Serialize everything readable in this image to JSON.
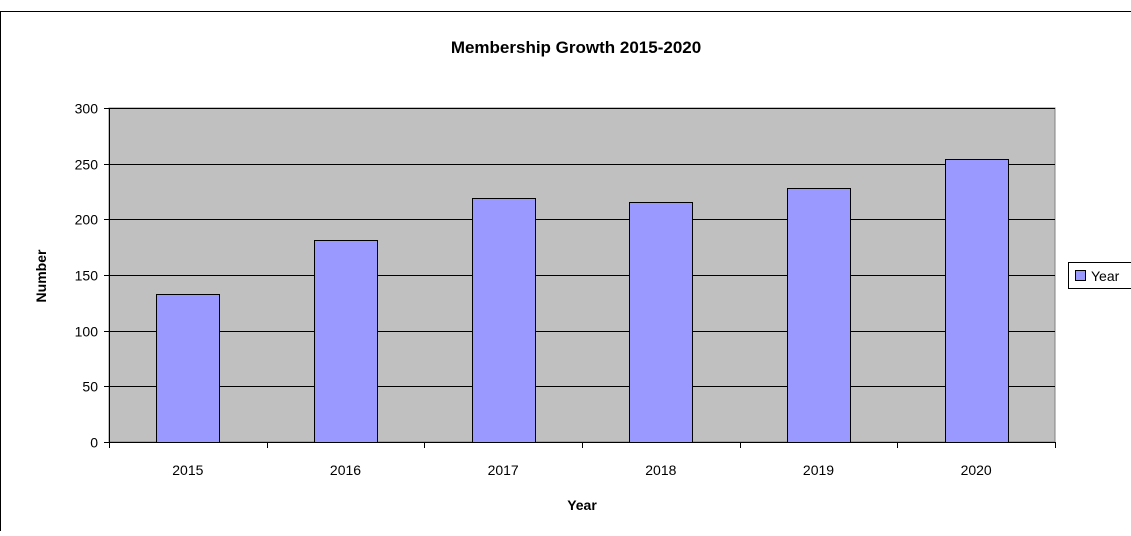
{
  "chart_data": {
    "type": "bar",
    "title": "Membership Growth 2015-2020",
    "xlabel": "Year",
    "ylabel": "Number",
    "categories": [
      "2015",
      "2016",
      "2017",
      "2018",
      "2019",
      "2020"
    ],
    "series": [
      {
        "name": "Year",
        "values": [
          133,
          181,
          219,
          216,
          228,
          254
        ]
      }
    ],
    "ylim": [
      0,
      300
    ],
    "yticks": [
      0,
      50,
      100,
      150,
      200,
      250,
      300
    ],
    "grid": true,
    "legend": "right",
    "colors": {
      "bar": "#9999ff",
      "plot_background": "#c0c0c0",
      "gridline": "#000000",
      "border": "#000000"
    }
  }
}
